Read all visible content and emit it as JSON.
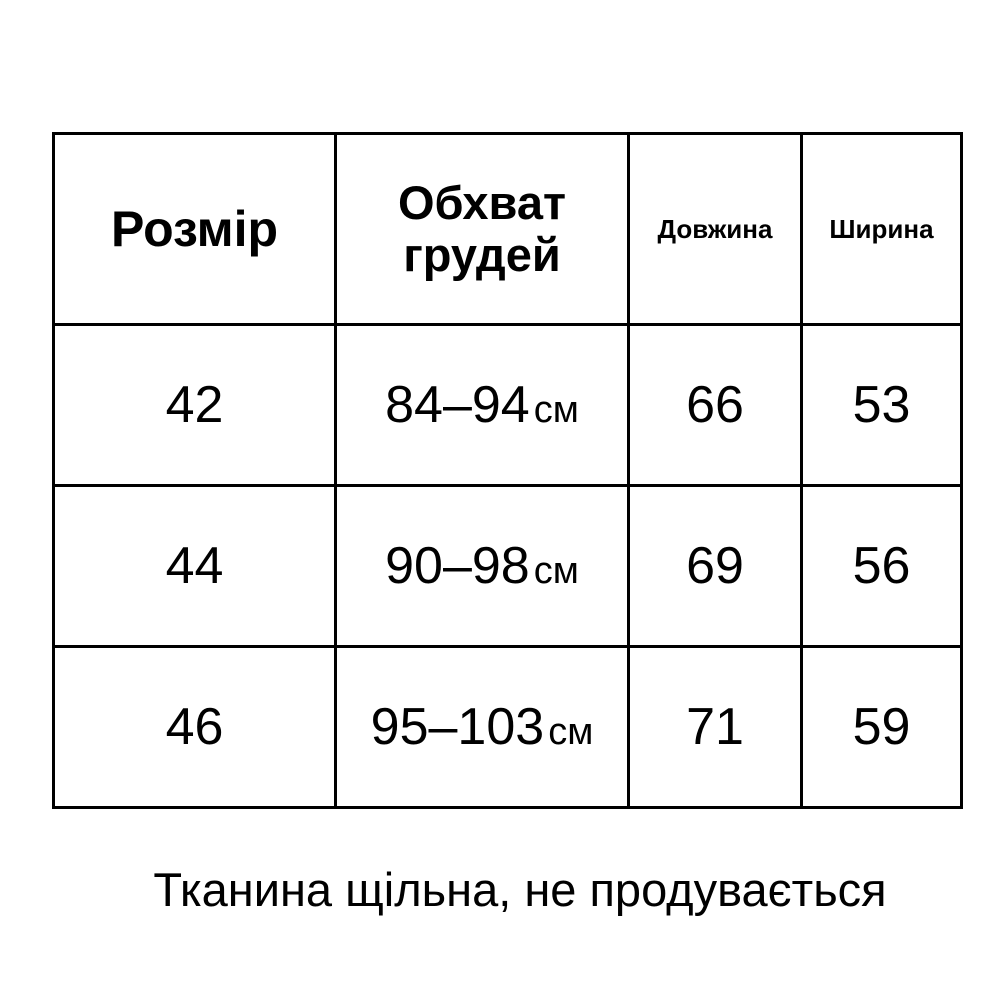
{
  "table": {
    "headers": [
      "Розмір",
      "Обхват грудей",
      "Довжина",
      "Ширина"
    ],
    "unit": "см",
    "rows": [
      {
        "size": "42",
        "chest": "84–94",
        "length": "66",
        "width": "53"
      },
      {
        "size": "44",
        "chest": "90–98",
        "length": "69",
        "width": "56"
      },
      {
        "size": "46",
        "chest": "95–103",
        "length": "71",
        "width": "59"
      }
    ]
  },
  "note": "Тканина щільна, не продувається"
}
